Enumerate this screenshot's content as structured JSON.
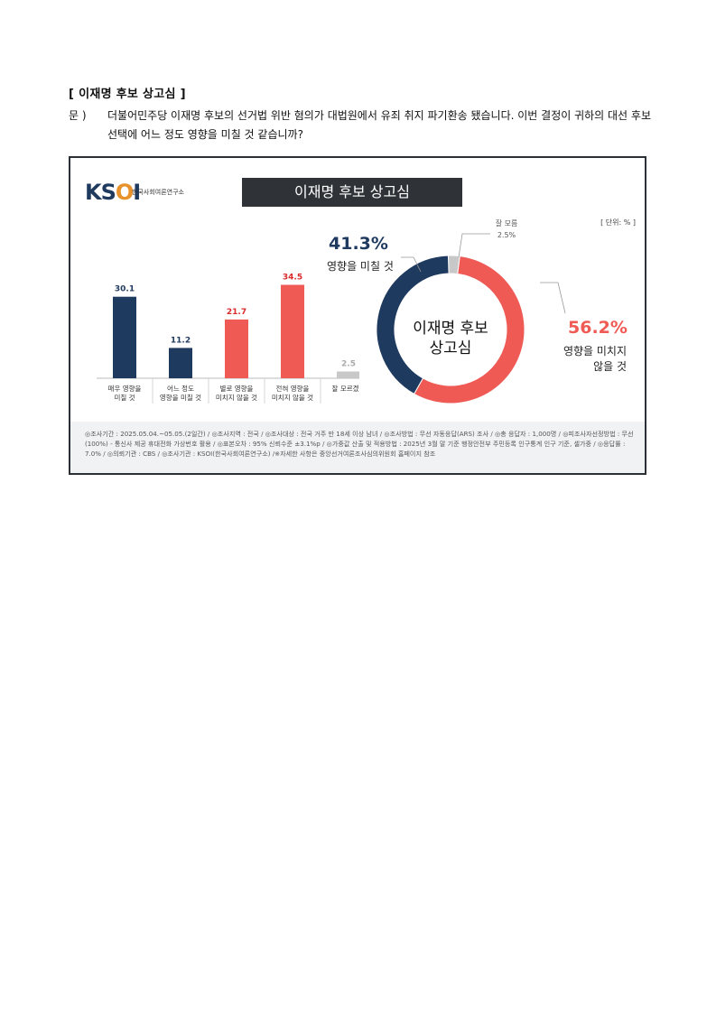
{
  "section_title": "[ 이재명 후보 상고심 ]",
  "question": {
    "label": "문 )",
    "text": "더불어민주당 이재명 후보의 선거법 위반 혐의가 대법원에서 유죄 취지 파기환송 됐습니다. 이번 결정이 귀하의 대선 후보 선택에 어느 정도 영향을 미칠 것 같습니까?"
  },
  "card": {
    "logo_text": "KSOI",
    "logo_sub": "한국사회여론연구소",
    "title": "이재명 후보 상고심",
    "unit": "[ 단위: % ]",
    "donut_center": "이재명 후보\n상고심",
    "footer": "◎조사기간 : 2025.05.04.~05.05.(2일간) / ◎조사지역 : 전국 / ◎조사대상 : 전국 거주 만 18세 이상 남녀 / ◎조사방법 : 무선 자동응답(ARS) 조사 / ◎총 응답자 : 1,000명 / ◎피조사자선정방법 : 무선(100%) - 통신사 제공 휴대전화 가상번호 활용 / ◎표본오차 : 95% 신뢰수준 ±3.1%p / ◎가중값 산출 및 적용방법 : 2025년 3월 말 기준 행정안전부 주민등록 인구통계 인구 기준, 셀가중 / ◎응답률 : 7.0% / ◎의뢰기관 : CBS / ◎조사기관 : KSOI(한국사회여론연구소) /※자세한 사항은 중앙선거여론조사심의위원회 홈페이지 참조"
  },
  "chart_data": [
    {
      "type": "bar",
      "categories": [
        "매우 영향을\n미칠 것",
        "어느 정도\n영향을 미칠 것",
        "별로 영향을\n미치지 않을 것",
        "전혀 영향을\n미치지 않을 것",
        "잘 모르겠다"
      ],
      "values": [
        30.1,
        11.2,
        21.7,
        34.5,
        2.5
      ],
      "colors": [
        "#1f3a5f",
        "#1f3a5f",
        "#ef5a55",
        "#ef5a55",
        "#c8c8c8"
      ],
      "value_label_colors": [
        "#1f3a5f",
        "#1f3a5f",
        "#d92b2b",
        "#d92b2b",
        "#aaaaaa"
      ],
      "ylim": [
        0,
        40
      ]
    },
    {
      "type": "pie",
      "donut": true,
      "slices": [
        {
          "label": "영향을 미칠 것",
          "value": 41.3,
          "display": "41.3%",
          "color": "#1f3a5f"
        },
        {
          "label": "영향을 미치지\n않을 것",
          "value": 56.2,
          "display": "56.2%",
          "color": "#ef5a55"
        },
        {
          "label": "잘 모름",
          "value": 2.5,
          "display": "2.5%",
          "color": "#c8c8c8"
        }
      ]
    }
  ]
}
